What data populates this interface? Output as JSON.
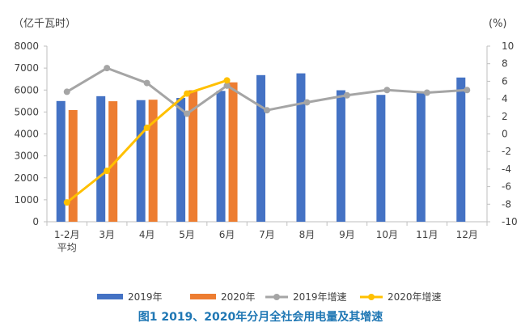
{
  "chart_data": {
    "type": "bar",
    "title": "图1  2019、2020年分月全社会用电量及其增速",
    "left_unit_label": "（亿千瓦时）",
    "right_unit_label": "(%)",
    "categories": [
      [
        "1-2月",
        "平均"
      ],
      [
        "3月"
      ],
      [
        "4月"
      ],
      [
        "5月"
      ],
      [
        "6月"
      ],
      [
        "7月"
      ],
      [
        "8月"
      ],
      [
        "9月"
      ],
      [
        "10月"
      ],
      [
        "11月"
      ],
      [
        "12月"
      ]
    ],
    "left_axis": {
      "min": 0,
      "max": 8000,
      "ticks": [
        "0",
        "1000",
        "2000",
        "3000",
        "4000",
        "5000",
        "6000",
        "7000",
        "8000"
      ]
    },
    "right_axis": {
      "min": -10,
      "max": 10,
      "ticks": [
        "-10",
        "-8",
        "-6",
        "-4",
        "-2",
        "0",
        "2",
        "4",
        "6",
        "8",
        "10"
      ]
    },
    "series": [
      {
        "name": "2019年",
        "type": "bar",
        "axis": "left",
        "color": "#4472C4",
        "values": [
          5500,
          5720,
          5540,
          5640,
          5960,
          6680,
          6760,
          5990,
          5780,
          5900,
          6570
        ]
      },
      {
        "name": "2020年",
        "type": "bar",
        "axis": "left",
        "color": "#ED7D31",
        "values": [
          5090,
          5490,
          5560,
          5990,
          6350,
          null,
          null,
          null,
          null,
          null,
          null
        ]
      },
      {
        "name": "2019年增速",
        "type": "line",
        "axis": "right",
        "color": "#A5A5A5",
        "values": [
          4.8,
          7.5,
          5.8,
          2.3,
          5.5,
          2.7,
          3.6,
          4.4,
          5.0,
          4.7,
          5.0
        ]
      },
      {
        "name": "2020年增速",
        "type": "line",
        "axis": "right",
        "color": "#FFC000",
        "values": [
          -7.8,
          -4.2,
          0.7,
          4.6,
          6.1,
          null,
          null,
          null,
          null,
          null,
          null
        ]
      }
    ],
    "caption_color": "#1F77B4"
  }
}
